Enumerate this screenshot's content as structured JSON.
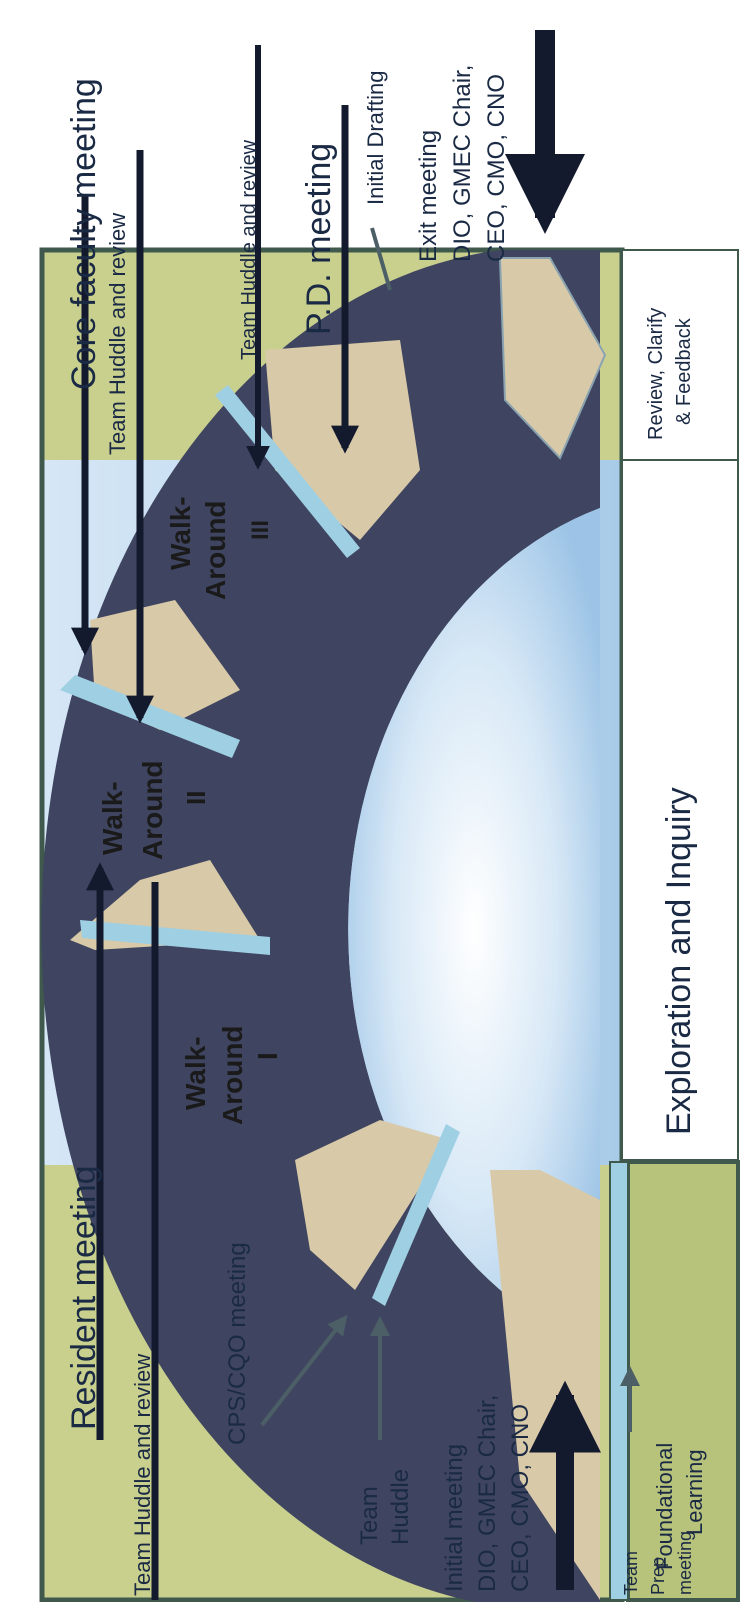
{
  "colors": {
    "frame_border": "#3f5a4d",
    "band_yellow": "#c9d08e",
    "band_blue": "#b8d6ef",
    "center_blue": "#a9cbe8",
    "ring_dark": "#3f4560",
    "ring_tan": "#d8c9a8",
    "separator": "#9fcfe3",
    "box_green": "#b7c27a",
    "arrow": "#141a2e"
  },
  "labels": {
    "resident_meeting": "Resident  meeting",
    "core_faculty_meeting": "Core faculty meeting",
    "team_huddle_review_1": "Team Huddle and review",
    "team_huddle_review_2": "Team Huddle and review",
    "team_huddle_review_3": "Team Huddle and review",
    "cps_cqo_meeting": "CPS/CQO meeting",
    "team_huddle_line1": "Team",
    "team_huddle_line2": "Huddle",
    "initial_meeting_line1": "Initial meeting",
    "initial_meeting_line2": "DIO, GMEC Chair,",
    "initial_meeting_line3": "CEO, CMO, CNO",
    "team_prep_line1": "Team",
    "team_prep_line2": "Prep",
    "team_prep_line3": "meeting",
    "walk_around_1_line1": "Walk-",
    "walk_around_1_line2": "Around",
    "walk_around_1_line3": "I",
    "walk_around_2_line1": "Walk-",
    "walk_around_2_line2": "Around",
    "walk_around_2_line3": "II",
    "walk_around_3_line1": "Walk-",
    "walk_around_3_line2": "Around",
    "walk_around_3_line3": "III",
    "pd_meeting": "P.D. meeting",
    "initial_drafting": "Initial Drafting",
    "exit_meeting_line1": "Exit meeting",
    "exit_meeting_line2": "DIO, GMEC Chair,",
    "exit_meeting_line3": "CEO, CMO, CNO",
    "foundational_line1": "Foundational",
    "foundational_line2": "Learning",
    "exploration": "Exploration and Inquiry",
    "review_line1": "Review, Clarify",
    "review_line2": "& Feedback"
  }
}
